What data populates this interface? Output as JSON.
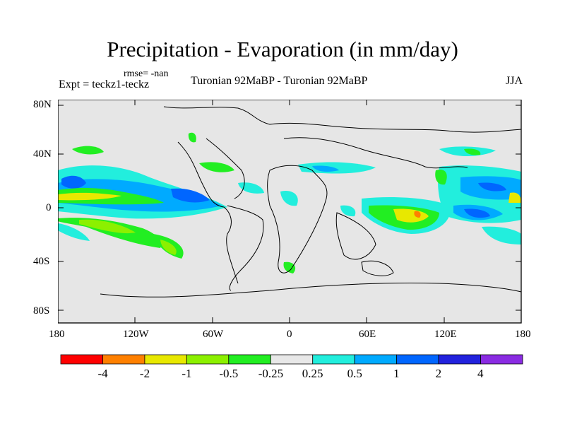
{
  "title": "Precipitation - Evaporation (in mm/day)",
  "rmse": "rmse= -nan",
  "expt": "Expt = teckz1-teckz",
  "period": "Turonian  92MaBP - Turonian  92MaBP",
  "season": "JJA",
  "lat_labels": [
    "80N",
    "40N",
    "0",
    "40S",
    "80S"
  ],
  "lon_labels": [
    "180",
    "120W",
    "60W",
    "0",
    "60E",
    "120E",
    "180"
  ],
  "colorbar": {
    "colors": [
      "#ff0000",
      "#ff8000",
      "#e8e800",
      "#8cf000",
      "#22ee22",
      "#e8e8e8",
      "#22eedd",
      "#00aaff",
      "#0066ff",
      "#2222dd",
      "#8a2be2"
    ],
    "labels": [
      "-4",
      "-2",
      "-1",
      "-0.5",
      "-0.25",
      "0.25",
      "0.5",
      "1",
      "2",
      "4"
    ]
  }
}
